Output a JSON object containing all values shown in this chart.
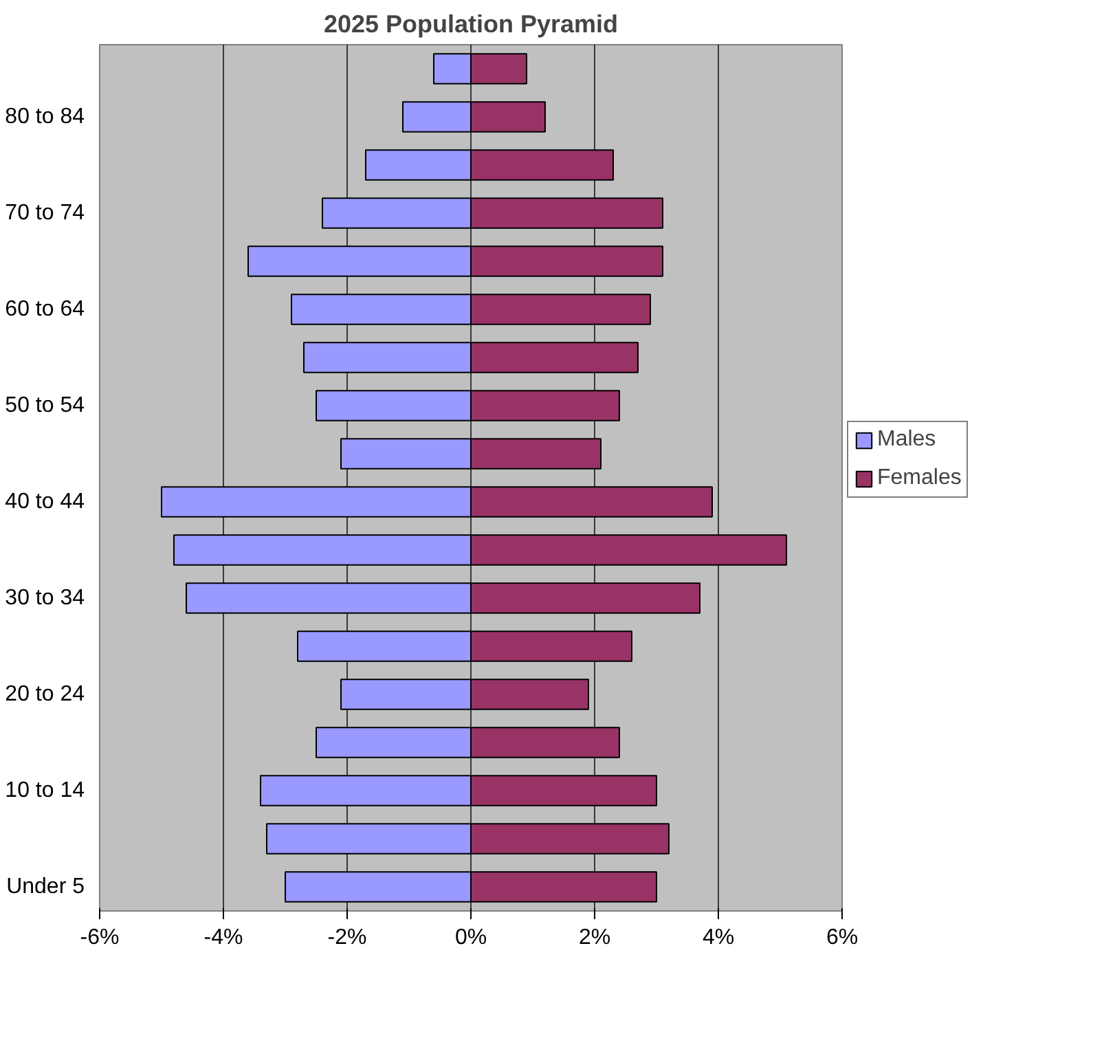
{
  "chart_data": {
    "type": "bar",
    "orientation": "horizontal",
    "title": "2025 Population Pyramid",
    "categories": [
      null,
      "80 to 84",
      null,
      "70 to 74",
      null,
      "60 to 64",
      null,
      "50 to 54",
      null,
      "40 to 44",
      null,
      "30 to 34",
      null,
      "20 to 24",
      null,
      "10 to 14",
      null,
      "Under 5"
    ],
    "stacked": true,
    "series": [
      {
        "name": "Males",
        "color": "#9999ff",
        "values": [
          -0.6,
          -1.1,
          -1.7,
          -2.4,
          -3.6,
          -2.9,
          -2.7,
          -2.5,
          -2.1,
          -5.0,
          -4.8,
          -4.6,
          -2.8,
          -2.1,
          -2.5,
          -3.4,
          -3.3,
          -3.0
        ]
      },
      {
        "name": "Females",
        "color": "#993366",
        "values": [
          0.9,
          1.2,
          2.3,
          3.1,
          3.1,
          2.9,
          2.7,
          2.4,
          2.1,
          3.9,
          5.1,
          3.7,
          2.6,
          1.9,
          2.4,
          3.0,
          3.2,
          3.0
        ]
      }
    ],
    "xlim": [
      -6,
      6
    ],
    "xticks": [
      {
        "value": -6,
        "label": "-6%"
      },
      {
        "value": -4,
        "label": "-4%"
      },
      {
        "value": -2,
        "label": "-2%"
      },
      {
        "value": 0,
        "label": "0%"
      },
      {
        "value": 2,
        "label": "2%"
      },
      {
        "value": 4,
        "label": "4%"
      },
      {
        "value": 6,
        "label": "6%"
      }
    ],
    "grid": "x",
    "legend": "right"
  }
}
